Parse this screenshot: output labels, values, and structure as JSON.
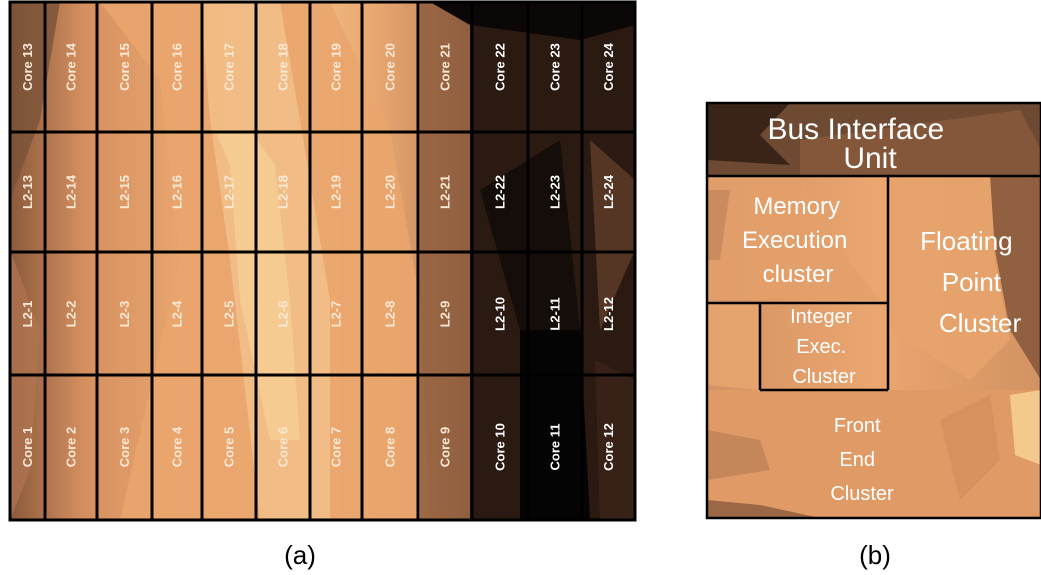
{
  "panel_a": {
    "caption": "(a)",
    "rows": [
      [
        "Core 13",
        "Core 14",
        "Core 15",
        "Core 16",
        "Core 17",
        "Core 18",
        "Core 19",
        "Core 20",
        "Core 21",
        "Core 22",
        "Core 23",
        "Core 24"
      ],
      [
        "L2-13",
        "L2-14",
        "L2-15",
        "L2-16",
        "L2-17",
        "L2-18",
        "L2-19",
        "L2-20",
        "L2-21",
        "L2-22",
        "L2-23",
        "L2-24"
      ],
      [
        "L2-1",
        "L2-2",
        "L2-3",
        "L2-4",
        "L2-5",
        "L2-6",
        "L2-7",
        "L2-8",
        "L2-9",
        "L2-10",
        "L2-11",
        "L2-12"
      ],
      [
        "Core 1",
        "Core 2",
        "Core 3",
        "Core 4",
        "Core 5",
        "Core 6",
        "Core 7",
        "Core 8",
        "Core 9",
        "Core 10",
        "Core 11",
        "Core 12"
      ]
    ]
  },
  "panel_b": {
    "caption": "(b)",
    "bus_interface": [
      "Bus Interface",
      "Unit"
    ],
    "memory_execution": [
      "Memory",
      "Execution",
      "cluster"
    ],
    "floating_point": [
      "Floating",
      "Point",
      "Cluster"
    ],
    "integer_exec": [
      "Integer",
      "Exec.",
      "Cluster"
    ],
    "front_end": [
      "Front",
      "End",
      "Cluster"
    ]
  },
  "colors": {
    "hot": "#f4c98c",
    "warm": "#e6a26c",
    "mid": "#b97d55",
    "cool": "#7a5238",
    "cold": "#3a2418",
    "coldest": "#0a0706",
    "gridline": "#000000"
  }
}
